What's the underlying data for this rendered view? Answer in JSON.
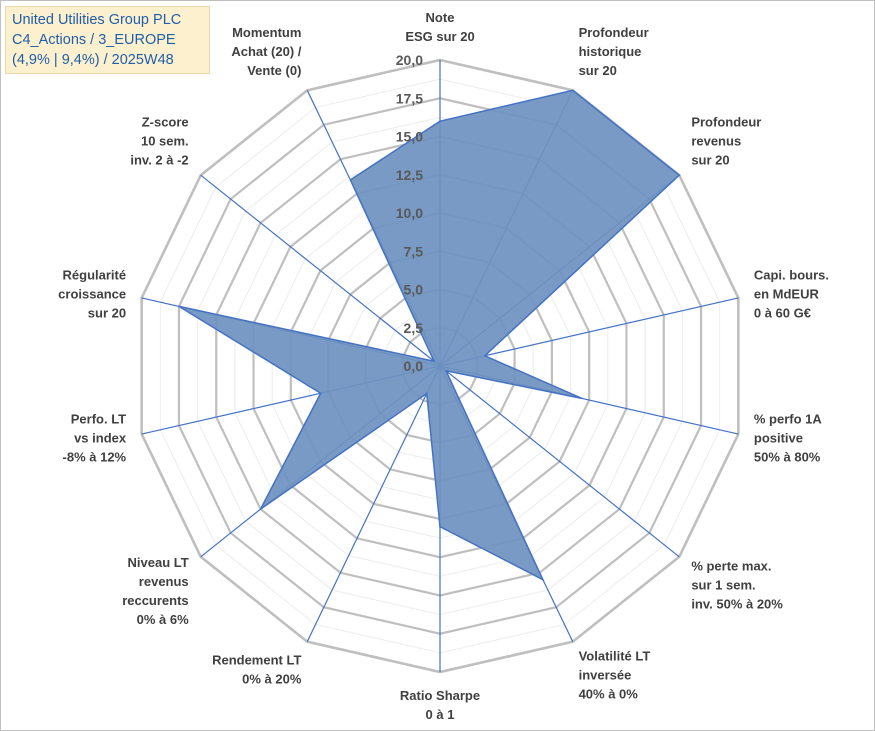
{
  "title": {
    "lines": [
      "United Utilities Group PLC",
      "C4_Actions / 3_EUROPE",
      "(4,9% | 9,4%) / 2025W48"
    ]
  },
  "chart_data": {
    "type": "radar",
    "rmin": 0,
    "rmax": 20,
    "ticks": [
      "0,0",
      "2,5",
      "5,0",
      "7,5",
      "10,0",
      "12,5",
      "15,0",
      "17,5",
      "20,0"
    ],
    "grid": true,
    "axes": [
      {
        "label": [
          "Note",
          "ESG sur 20"
        ],
        "value": 16.0
      },
      {
        "label": [
          "Profondeur",
          "historique",
          "sur 20"
        ],
        "value": 20.0
      },
      {
        "label": [
          "Profondeur",
          "revenus",
          "sur 20"
        ],
        "value": 20.0
      },
      {
        "label": [
          "Capi. bours.",
          "en MdEUR",
          "0 à 60 G€"
        ],
        "value": 3.0
      },
      {
        "label": [
          "% perfo 1A",
          "positive",
          "50% à 80%"
        ],
        "value": 9.5
      },
      {
        "label": [
          "% perte max.",
          "sur 1 sem.",
          "inv. 50% à 20%"
        ],
        "value": 0.5
      },
      {
        "label": [
          "Volatilité LT",
          "inversée",
          "40% à 0%"
        ],
        "value": 15.5
      },
      {
        "label": [
          "Ratio Sharpe",
          "0 à 1"
        ],
        "value": 10.5
      },
      {
        "label": [
          "Rendement LT",
          "0% à 20%"
        ],
        "value": 2.0
      },
      {
        "label": [
          "Niveau LT",
          "revenus",
          "reccurents",
          "0% à 6%"
        ],
        "value": 15.0
      },
      {
        "label": [
          "Perfo. LT",
          "vs index",
          "-8% à 12%"
        ],
        "value": 8.0
      },
      {
        "label": [
          "Régularité",
          "croissance",
          "sur 20"
        ],
        "value": 17.5
      },
      {
        "label": [
          "Z-score",
          "10 sem.",
          "inv. 2 à -2"
        ],
        "value": 0.5
      },
      {
        "label": [
          "Momentum",
          "Achat (20) /",
          "Vente (0)"
        ],
        "value": 13.5
      }
    ],
    "colors": {
      "fill": "#6f92bf",
      "stroke": "#4472c4",
      "grid": "#c8c8c8",
      "spoke": "#4472c4"
    }
  }
}
